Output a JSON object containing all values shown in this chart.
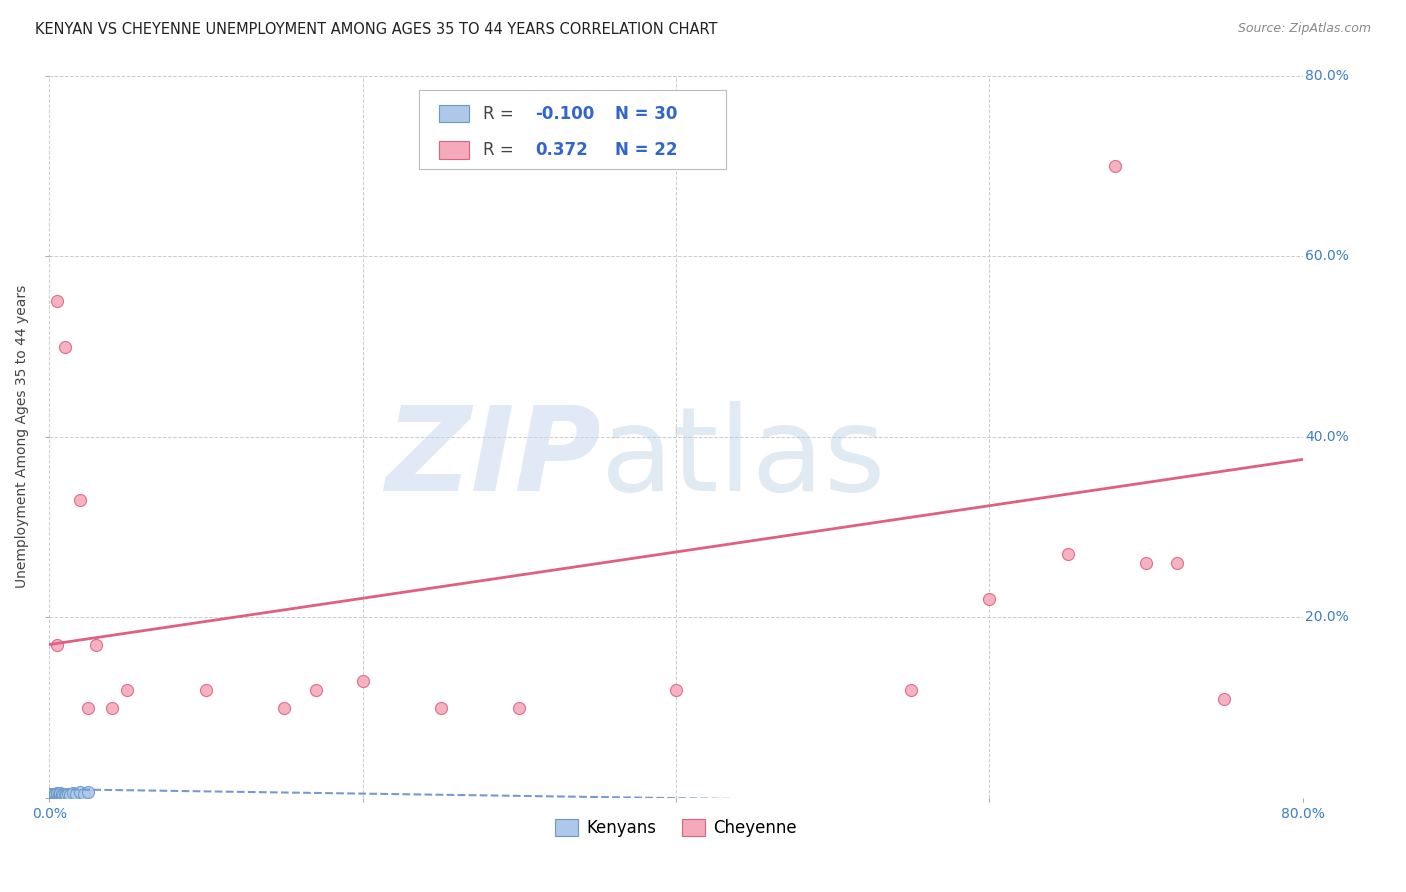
{
  "title": "KENYAN VS CHEYENNE UNEMPLOYMENT AMONG AGES 35 TO 44 YEARS CORRELATION CHART",
  "source": "Source: ZipAtlas.com",
  "ylabel": "Unemployment Among Ages 35 to 44 years",
  "xlim": [
    0.0,
    0.8
  ],
  "ylim": [
    0.0,
    0.8
  ],
  "xticks": [
    0.0,
    0.2,
    0.4,
    0.6,
    0.8
  ],
  "yticks": [
    0.0,
    0.2,
    0.4,
    0.6,
    0.8
  ],
  "background_color": "#ffffff",
  "legend_R_kenyan": "-0.100",
  "legend_N_kenyan": "30",
  "legend_R_cheyenne": "0.372",
  "legend_N_cheyenne": "22",
  "kenyan_color": "#adc8e8",
  "cheyenne_color": "#f5aabb",
  "kenyan_edge_color": "#6699cc",
  "cheyenne_edge_color": "#e06080",
  "kenyan_line_color": "#7799cc",
  "cheyenne_line_color": "#e06080",
  "kenyan_x": [
    0.0,
    0.0,
    0.001,
    0.001,
    0.002,
    0.002,
    0.003,
    0.003,
    0.004,
    0.004,
    0.005,
    0.005,
    0.005,
    0.006,
    0.006,
    0.007,
    0.007,
    0.008,
    0.008,
    0.009,
    0.01,
    0.01,
    0.011,
    0.012,
    0.013,
    0.015,
    0.017,
    0.02,
    0.022,
    0.025
  ],
  "kenyan_y": [
    0.0,
    0.003,
    0.001,
    0.004,
    0.002,
    0.005,
    0.001,
    0.004,
    0.002,
    0.005,
    0.001,
    0.003,
    0.006,
    0.002,
    0.005,
    0.003,
    0.006,
    0.002,
    0.005,
    0.003,
    0.001,
    0.004,
    0.003,
    0.005,
    0.004,
    0.006,
    0.005,
    0.007,
    0.005,
    0.007
  ],
  "cheyenne_x": [
    0.005,
    0.005,
    0.01,
    0.02,
    0.025,
    0.03,
    0.04,
    0.05,
    0.1,
    0.15,
    0.17,
    0.2,
    0.25,
    0.3,
    0.4,
    0.55,
    0.6,
    0.65,
    0.68,
    0.7,
    0.72,
    0.75
  ],
  "cheyenne_y": [
    0.17,
    0.55,
    0.5,
    0.33,
    0.1,
    0.17,
    0.1,
    0.12,
    0.12,
    0.1,
    0.12,
    0.13,
    0.1,
    0.1,
    0.12,
    0.12,
    0.22,
    0.27,
    0.7,
    0.26,
    0.26,
    0.11
  ],
  "kenyan_trend_x0": 0.0,
  "kenyan_trend_y0": 0.01,
  "kenyan_trend_x1": 0.8,
  "kenyan_trend_y1": -0.01,
  "cheyenne_trend_x0": 0.0,
  "cheyenne_trend_y0": 0.17,
  "cheyenne_trend_x1": 0.8,
  "cheyenne_trend_y1": 0.375,
  "marker_size": 75,
  "title_fontsize": 10.5,
  "axis_label_fontsize": 10,
  "tick_fontsize": 10,
  "legend_fontsize": 12
}
